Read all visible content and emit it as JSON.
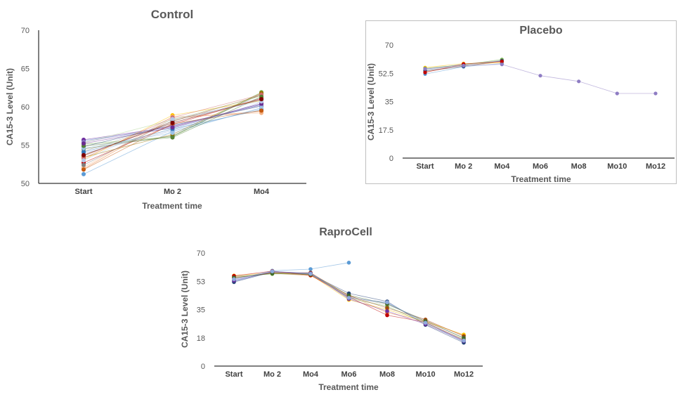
{
  "chart_data": [
    {
      "id": "control",
      "type": "line",
      "title": "Control",
      "xlabel": "Treatment time",
      "ylabel": "CA15-3 Level (Unit)",
      "categories": [
        "Start",
        "Mo 2",
        "Mo4"
      ],
      "ylim": [
        50,
        70
      ],
      "yticks": [
        "50",
        "55",
        "60",
        "65",
        "70"
      ],
      "grid": false,
      "series": [
        {
          "color": "#4472c4",
          "values": [
            55.6,
            57.2,
            60.3
          ]
        },
        {
          "color": "#ed7d31",
          "values": [
            51.9,
            58.5,
            59.4
          ]
        },
        {
          "color": "#a5a5a5",
          "values": [
            54.2,
            57.9,
            61.2
          ]
        },
        {
          "color": "#ffc000",
          "values": [
            53.1,
            58.9,
            60.8
          ]
        },
        {
          "color": "#5b9bd5",
          "values": [
            51.2,
            56.8,
            59.8
          ]
        },
        {
          "color": "#70ad47",
          "values": [
            55.1,
            56.1,
            61.9
          ]
        },
        {
          "color": "#264478",
          "values": [
            54.8,
            57.6,
            60.1
          ]
        },
        {
          "color": "#9e480e",
          "values": [
            53.6,
            58.1,
            61.5
          ]
        },
        {
          "color": "#7030a0",
          "values": [
            55.7,
            57.4,
            60.4
          ]
        },
        {
          "color": "#c00000",
          "values": [
            52.7,
            57.7,
            61.1
          ]
        },
        {
          "color": "#43682b",
          "values": [
            54.5,
            56.2,
            61.7
          ]
        },
        {
          "color": "#f4b183",
          "values": [
            52.1,
            58.7,
            59.2
          ]
        },
        {
          "color": "#8faadc",
          "values": [
            53.9,
            56.9,
            60.6
          ]
        },
        {
          "color": "#a9d18e",
          "values": [
            55.3,
            58.3,
            61.4
          ]
        },
        {
          "color": "#997300",
          "values": [
            53.4,
            56.4,
            61.8
          ]
        },
        {
          "color": "#2e75b6",
          "values": [
            54.1,
            57.1,
            59.6
          ]
        },
        {
          "color": "#7f7f7f",
          "values": [
            52.4,
            58.2,
            60.9
          ]
        },
        {
          "color": "#8e7cc3",
          "values": [
            55.4,
            57.5,
            60.2
          ]
        },
        {
          "color": "#d06b6b",
          "values": [
            53.3,
            58.6,
            61.6
          ]
        },
        {
          "color": "#9dc3e6",
          "values": [
            54.6,
            56.6,
            59.9
          ]
        },
        {
          "color": "#c55a11",
          "values": [
            51.8,
            57.8,
            59.5
          ]
        },
        {
          "color": "#548235",
          "values": [
            54.9,
            56.0,
            61.3
          ]
        },
        {
          "color": "#6b2c91",
          "values": [
            55.2,
            57.3,
            60.4
          ]
        },
        {
          "color": "#b4c7e7",
          "values": [
            53.0,
            58.4,
            60.7
          ]
        },
        {
          "color": "#800000",
          "values": [
            53.7,
            57.9,
            61.0
          ]
        }
      ]
    },
    {
      "id": "placebo",
      "type": "line",
      "title": "Placebo",
      "xlabel": "Treatment time",
      "ylabel": "CA15-3 Level (Unit)",
      "categories": [
        "Start",
        "Mo 2",
        "Mo4",
        "Mo6",
        "Mo8",
        "Mo10",
        "Mo12"
      ],
      "ylim": [
        0,
        70
      ],
      "yticks": [
        "0",
        "17.5",
        "35",
        "52.5",
        "70"
      ],
      "grid": false,
      "series": [
        {
          "color": "#4472c4",
          "values": [
            55.0,
            58.0,
            60.0,
            null,
            null,
            null,
            null
          ]
        },
        {
          "color": "#ed7d31",
          "values": [
            53.5,
            57.0,
            59.5,
            null,
            null,
            null,
            null
          ]
        },
        {
          "color": "#a5a5a5",
          "values": [
            54.5,
            57.5,
            60.5,
            null,
            null,
            null,
            null
          ]
        },
        {
          "color": "#ffc000",
          "values": [
            56.0,
            58.5,
            59.0,
            null,
            null,
            null,
            null
          ]
        },
        {
          "color": "#5b9bd5",
          "values": [
            52.0,
            56.5,
            58.5,
            null,
            null,
            null,
            null
          ]
        },
        {
          "color": "#70ad47",
          "values": [
            55.5,
            57.8,
            61.0,
            null,
            null,
            null,
            null
          ]
        },
        {
          "color": "#264478",
          "values": [
            54.0,
            56.8,
            60.2,
            null,
            null,
            null,
            null
          ]
        },
        {
          "color": "#c00000",
          "values": [
            53.0,
            58.2,
            59.8,
            null,
            null,
            null,
            null
          ]
        },
        {
          "color": "#8e7cc3",
          "values": [
            55.2,
            57.2,
            58.0,
            51.0,
            47.5,
            40.0,
            40.0
          ]
        }
      ]
    },
    {
      "id": "raprocell",
      "type": "line",
      "title": "RaproCell",
      "xlabel": "Treatment time",
      "ylabel": "CA15-3 Level (Unit)",
      "categories": [
        "Start",
        "Mo 2",
        "Mo4",
        "Mo6",
        "Mo8",
        "Mo10",
        "Mo12"
      ],
      "ylim": [
        0,
        70
      ],
      "yticks": [
        "0",
        "18",
        "35",
        "53",
        "70"
      ],
      "grid": false,
      "series": [
        {
          "color": "#4472c4",
          "values": [
            52.5,
            58.5,
            57.5,
            42.5,
            39.0,
            27.0,
            15.0
          ]
        },
        {
          "color": "#ed7d31",
          "values": [
            55.0,
            57.5,
            56.0,
            44.0,
            33.0,
            28.0,
            19.0
          ]
        },
        {
          "color": "#a5a5a5",
          "values": [
            54.0,
            58.0,
            57.0,
            43.0,
            38.0,
            28.5,
            17.0
          ]
        },
        {
          "color": "#ffc000",
          "values": [
            56.0,
            57.8,
            56.5,
            41.0,
            35.0,
            27.5,
            19.5
          ]
        },
        {
          "color": "#5b9bd5",
          "values": [
            53.5,
            59.0,
            60.0,
            64.0,
            null,
            null,
            null
          ]
        },
        {
          "color": "#70ad47",
          "values": [
            55.5,
            57.0,
            57.2,
            42.0,
            37.0,
            26.5,
            16.5
          ]
        },
        {
          "color": "#264478",
          "values": [
            52.0,
            58.2,
            56.8,
            45.0,
            40.0,
            25.5,
            14.5
          ]
        },
        {
          "color": "#9e480e",
          "values": [
            54.5,
            57.6,
            57.8,
            43.5,
            36.0,
            28.8,
            18.5
          ]
        },
        {
          "color": "#c00000",
          "values": [
            55.8,
            58.8,
            56.2,
            42.8,
            31.5,
            27.2,
            16.0
          ]
        },
        {
          "color": "#7030a0",
          "values": [
            53.0,
            58.4,
            57.4,
            41.5,
            34.0,
            26.0,
            15.5
          ]
        },
        {
          "color": "#43682b",
          "values": [
            54.8,
            57.3,
            56.6,
            43.8,
            38.5,
            27.8,
            17.5
          ]
        },
        {
          "color": "#8faadc",
          "values": [
            53.8,
            58.6,
            57.1,
            42.2,
            39.5,
            26.8,
            15.8
          ]
        }
      ]
    }
  ]
}
